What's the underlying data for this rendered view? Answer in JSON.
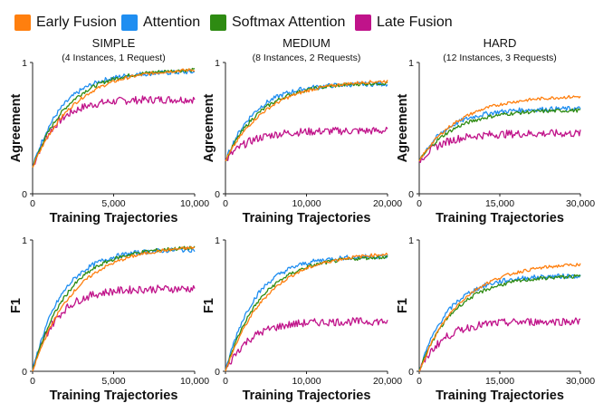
{
  "legend": [
    {
      "name": "Early Fusion",
      "color": "#ff7f0e"
    },
    {
      "name": "Attention",
      "color": "#1f8ef1"
    },
    {
      "name": "Softmax Attention",
      "color": "#2e8b12"
    },
    {
      "name": "Late Fusion",
      "color": "#c0138a"
    }
  ],
  "chart_data": [
    {
      "type": "line",
      "title": "SIMPLE",
      "subtitle": "(4 Instances, 1 Request)",
      "xlabel": "Training Trajectories",
      "ylabel": "Agreement",
      "xlim": [
        0,
        10000
      ],
      "ylim": [
        0,
        1
      ],
      "xticks": [
        "0",
        "5,000",
        "10,000"
      ],
      "yticks": [
        "0",
        "1"
      ],
      "series": [
        {
          "name": "Early Fusion",
          "final": 0.96,
          "start": 0.2
        },
        {
          "name": "Attention",
          "final": 0.93,
          "start": 0.2
        },
        {
          "name": "Softmax Attention",
          "final": 0.95,
          "start": 0.2
        },
        {
          "name": "Late Fusion",
          "final": 0.72,
          "start": 0.2
        }
      ]
    },
    {
      "type": "line",
      "title": "MEDIUM",
      "subtitle": "(8 Instances, 2 Requests)",
      "xlabel": "Training Trajectories",
      "ylabel": "Agreement",
      "xlim": [
        0,
        20000
      ],
      "ylim": [
        0,
        1
      ],
      "xticks": [
        "0",
        "10,000",
        "20,000"
      ],
      "yticks": [
        "0",
        "1"
      ],
      "series": [
        {
          "name": "Early Fusion",
          "final": 0.87,
          "start": 0.25
        },
        {
          "name": "Attention",
          "final": 0.84,
          "start": 0.25
        },
        {
          "name": "Softmax Attention",
          "final": 0.85,
          "start": 0.25
        },
        {
          "name": "Late Fusion",
          "final": 0.48,
          "start": 0.25
        }
      ]
    },
    {
      "type": "line",
      "title": "HARD",
      "subtitle": "(12 Instances, 3 Requests)",
      "xlabel": "Training Trajectories",
      "ylabel": "Agreement",
      "xlim": [
        0,
        30000
      ],
      "ylim": [
        0,
        1
      ],
      "xticks": [
        "0",
        "15,000",
        "30,000"
      ],
      "yticks": [
        "0",
        "1"
      ],
      "series": [
        {
          "name": "Early Fusion",
          "final": 0.75,
          "start": 0.25
        },
        {
          "name": "Attention",
          "final": 0.65,
          "start": 0.25
        },
        {
          "name": "Softmax Attention",
          "final": 0.64,
          "start": 0.25
        },
        {
          "name": "Late Fusion",
          "final": 0.46,
          "start": 0.25
        }
      ]
    },
    {
      "type": "line",
      "title": "",
      "subtitle": "",
      "xlabel": "Training Trajectories",
      "ylabel": "F1",
      "xlim": [
        0,
        10000
      ],
      "ylim": [
        0,
        1
      ],
      "xticks": [
        "0",
        "5,000",
        "10,000"
      ],
      "yticks": [
        "0",
        "1"
      ],
      "series": [
        {
          "name": "Early Fusion",
          "final": 0.96,
          "start": 0.0
        },
        {
          "name": "Attention",
          "final": 0.93,
          "start": 0.0
        },
        {
          "name": "Softmax Attention",
          "final": 0.95,
          "start": 0.0
        },
        {
          "name": "Late Fusion",
          "final": 0.63,
          "start": 0.0
        }
      ]
    },
    {
      "type": "line",
      "title": "",
      "subtitle": "",
      "xlabel": "Training Trajectories",
      "ylabel": "F1",
      "xlim": [
        0,
        20000
      ],
      "ylim": [
        0,
        1
      ],
      "xticks": [
        "0",
        "10,000",
        "20,000"
      ],
      "yticks": [
        "0",
        "1"
      ],
      "series": [
        {
          "name": "Early Fusion",
          "final": 0.91,
          "start": 0.0
        },
        {
          "name": "Attention",
          "final": 0.88,
          "start": 0.0
        },
        {
          "name": "Softmax Attention",
          "final": 0.88,
          "start": 0.0
        },
        {
          "name": "Late Fusion",
          "final": 0.38,
          "start": 0.0
        }
      ]
    },
    {
      "type": "line",
      "title": "",
      "subtitle": "",
      "xlabel": "Training Trajectories",
      "ylabel": "F1",
      "xlim": [
        0,
        30000
      ],
      "ylim": [
        0,
        1
      ],
      "xticks": [
        "0",
        "15,000",
        "30,000"
      ],
      "yticks": [
        "0",
        "1"
      ],
      "series": [
        {
          "name": "Early Fusion",
          "final": 0.83,
          "start": 0.0
        },
        {
          "name": "Attention",
          "final": 0.73,
          "start": 0.0
        },
        {
          "name": "Softmax Attention",
          "final": 0.73,
          "start": 0.0
        },
        {
          "name": "Late Fusion",
          "final": 0.38,
          "start": 0.0
        }
      ]
    }
  ]
}
